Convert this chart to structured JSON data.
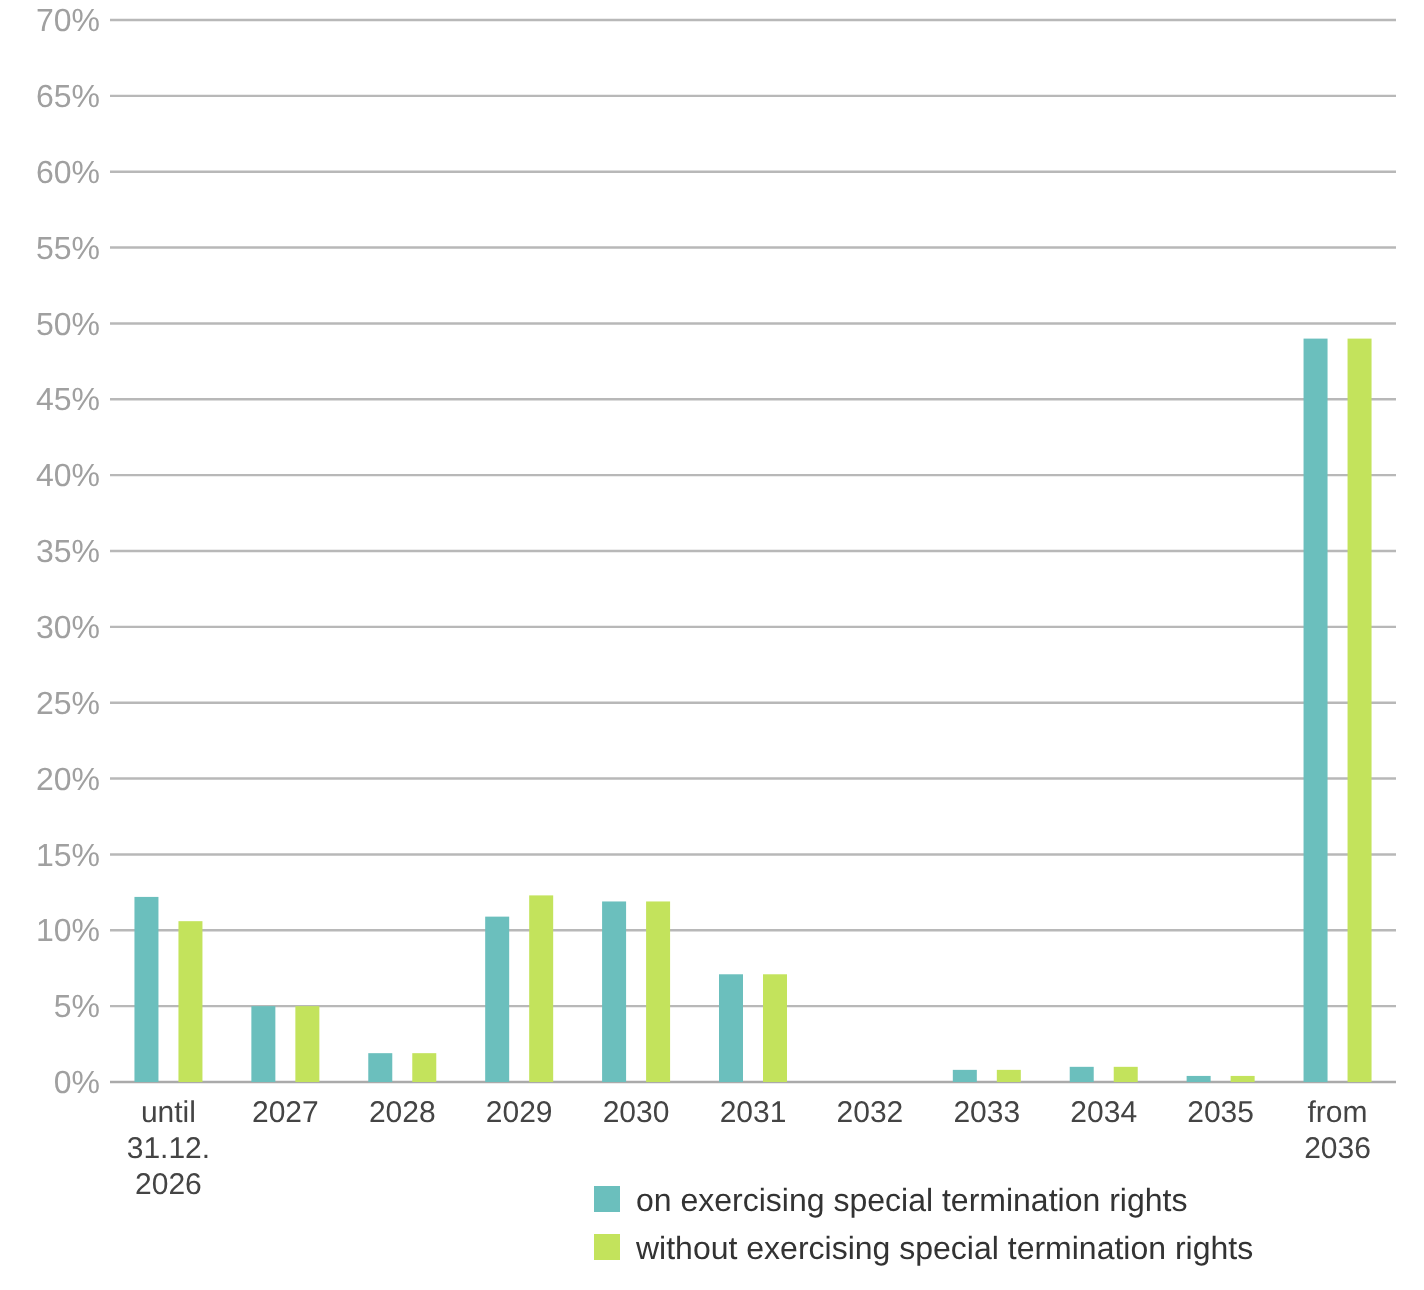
{
  "chart_data": {
    "type": "bar",
    "categories": [
      "until 31.12. 2026",
      "2027",
      "2028",
      "2029",
      "2030",
      "2031",
      "2032",
      "2033",
      "2034",
      "2035",
      "from 2036"
    ],
    "series": [
      {
        "name": "on exercising special termination rights",
        "color": "#6bbfbd",
        "values": [
          12.2,
          5,
          1.9,
          10.9,
          11.9,
          7.1,
          0,
          0.8,
          1.0,
          0.4,
          49
        ]
      },
      {
        "name": "without exercising special termination rights",
        "color": "#c3e35c",
        "values": [
          10.6,
          5,
          1.9,
          12.3,
          11.9,
          7.1,
          0,
          0.8,
          1.0,
          0.4,
          49
        ]
      }
    ],
    "ylim": [
      0,
      70
    ],
    "yticks": [
      {
        "value": 0,
        "label": "0%"
      },
      {
        "value": 5,
        "label": "5%"
      },
      {
        "value": 10,
        "label": "10%"
      },
      {
        "value": 15,
        "label": "15%"
      },
      {
        "value": 20,
        "label": "20%"
      },
      {
        "value": 25,
        "label": "25%"
      },
      {
        "value": 30,
        "label": "30%"
      },
      {
        "value": 35,
        "label": "35%"
      },
      {
        "value": 40,
        "label": "40%"
      },
      {
        "value": 45,
        "label": "45%"
      },
      {
        "value": 50,
        "label": "50%"
      },
      {
        "value": 55,
        "label": "55%"
      },
      {
        "value": 60,
        "label": "60%"
      },
      {
        "value": 65,
        "label": "65%"
      },
      {
        "value": 70,
        "label": "70%"
      }
    ],
    "grid": "y",
    "legend": "bottom right"
  }
}
